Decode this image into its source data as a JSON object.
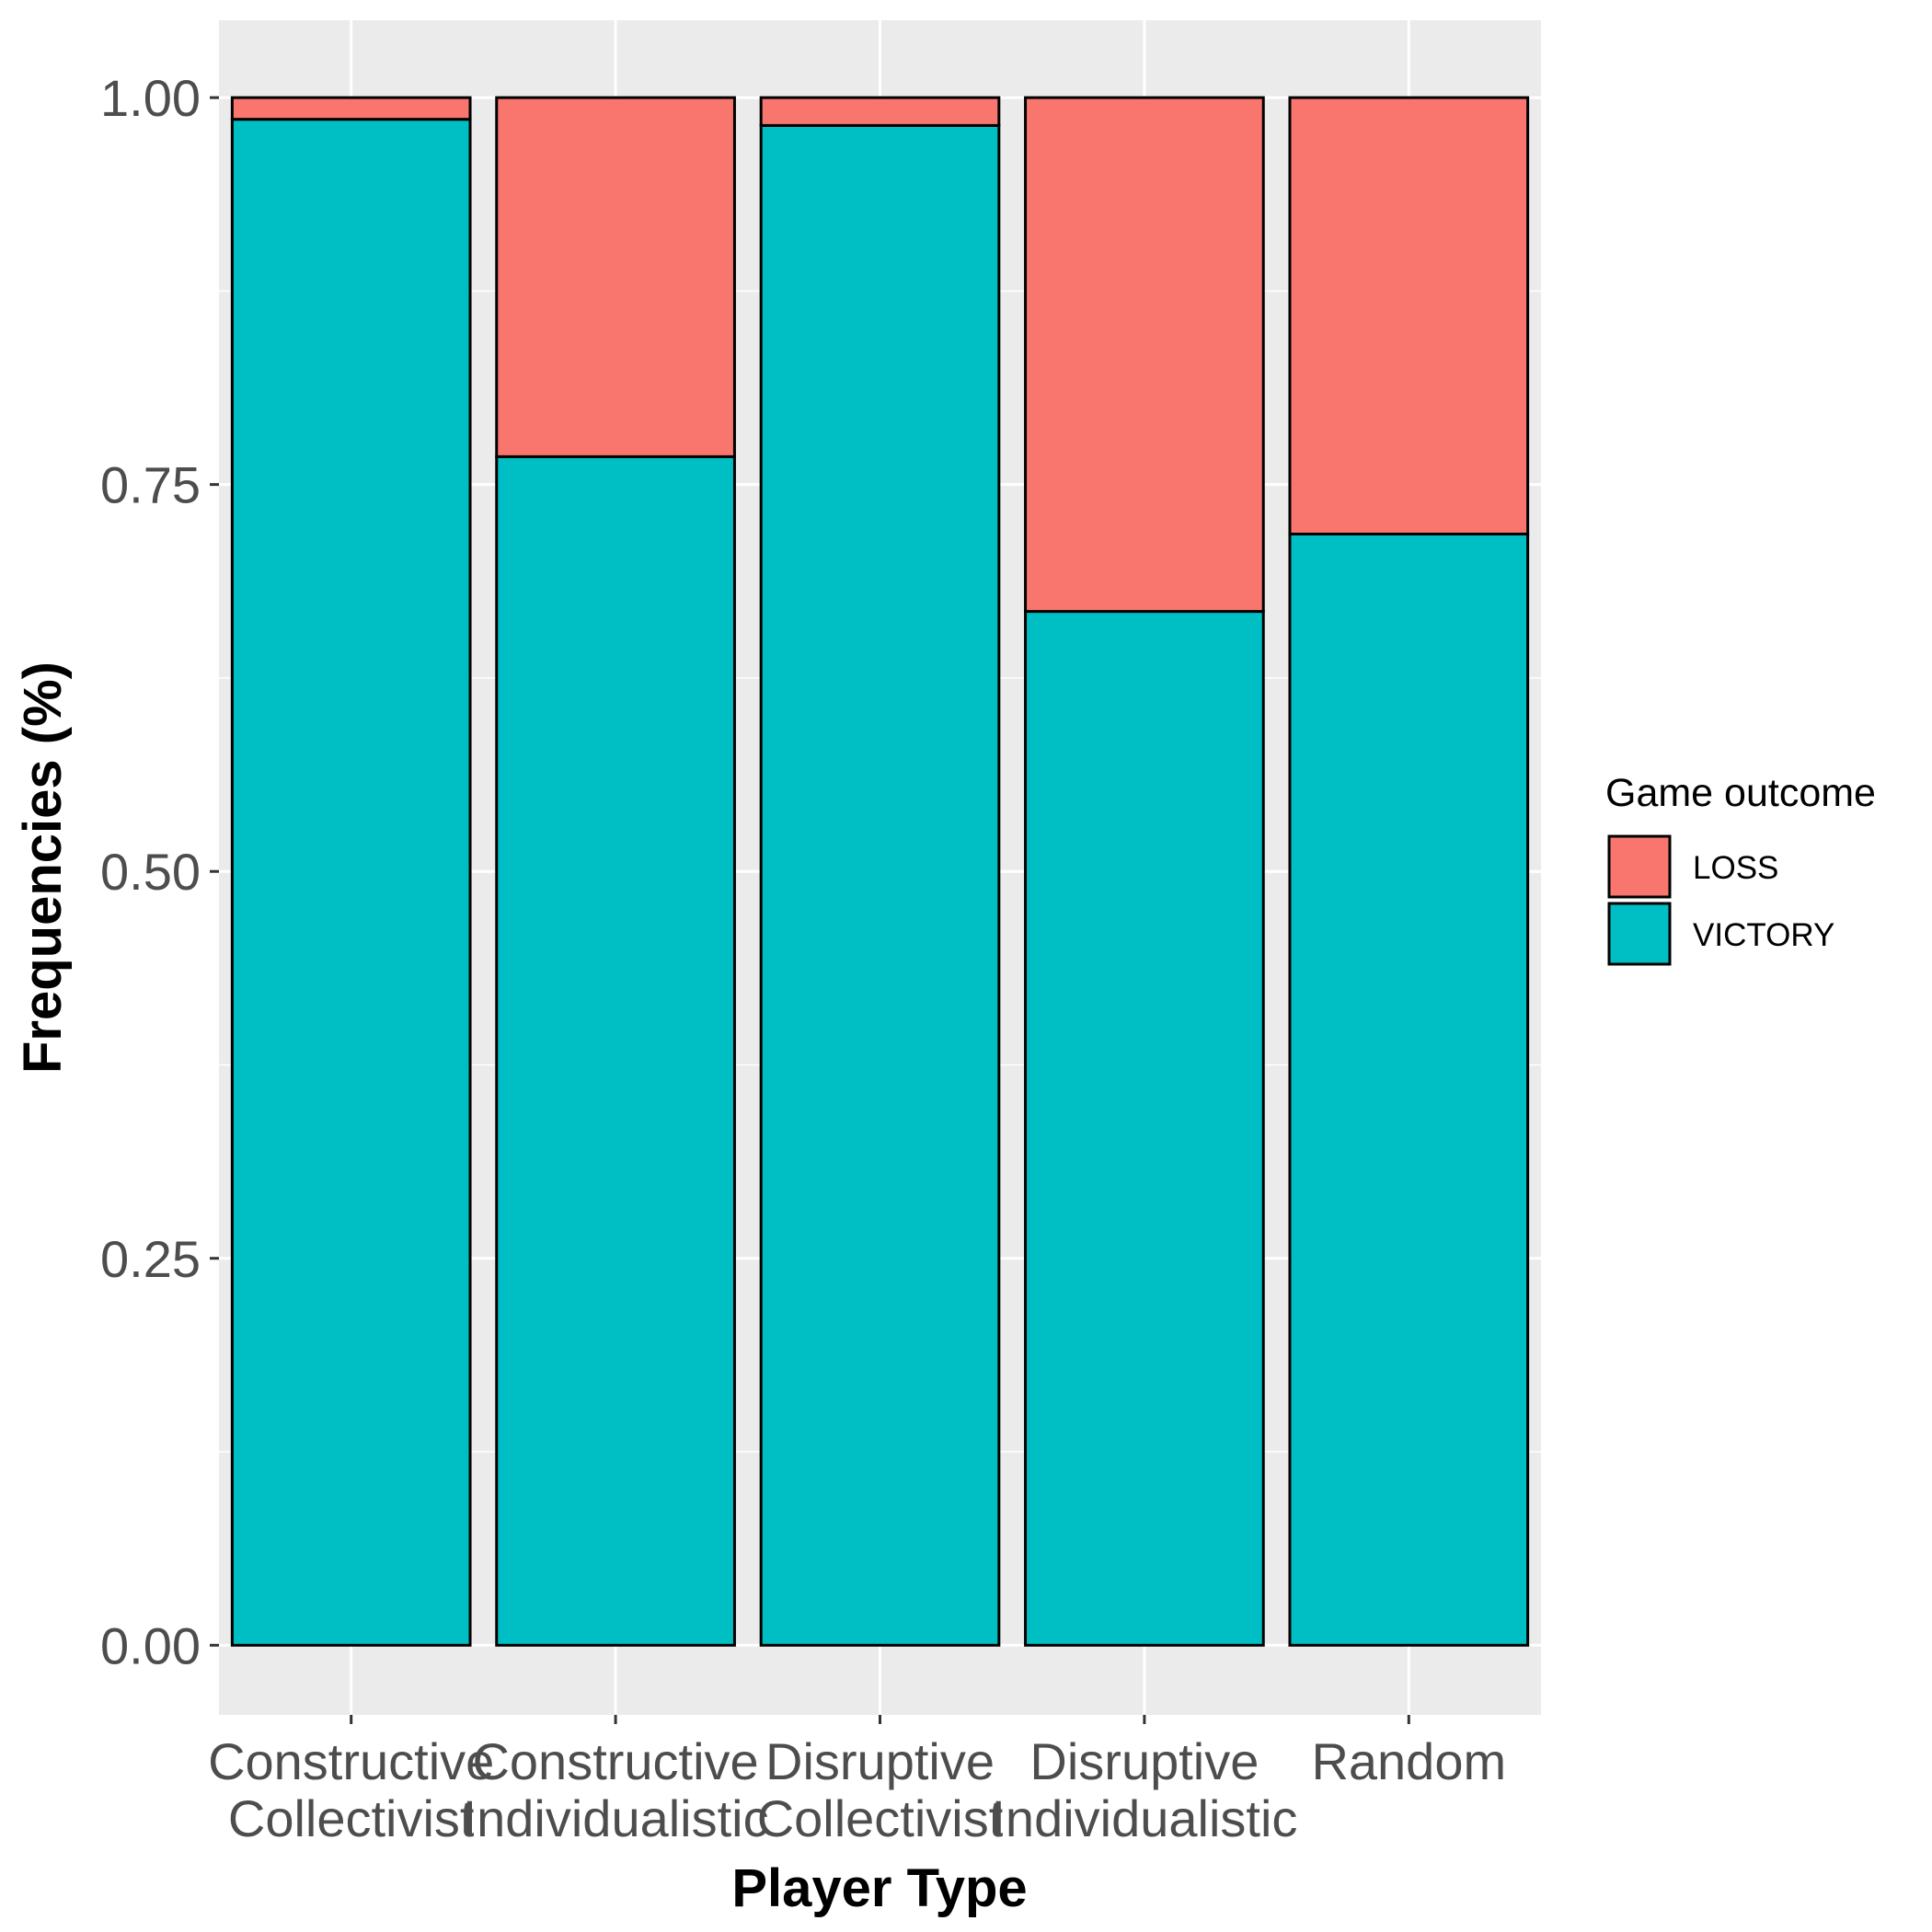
{
  "chart_data": {
    "type": "bar",
    "stacked": true,
    "categories": [
      [
        "Constructive",
        "Collectivist"
      ],
      [
        "Constructive",
        "Individualistic"
      ],
      [
        "Disruptive",
        "Collectivist"
      ],
      [
        "Disruptive",
        "Individualistic"
      ],
      [
        "Random"
      ]
    ],
    "series": [
      {
        "name": "VICTORY",
        "color": "#00BFC4",
        "values": [
          0.986,
          0.768,
          0.982,
          0.668,
          0.718
        ]
      },
      {
        "name": "LOSS",
        "color": "#F8766D",
        "values": [
          0.014,
          0.232,
          0.018,
          0.332,
          0.282
        ]
      }
    ],
    "xlabel": "Player Type",
    "ylabel": "Frequencies (%)",
    "ylim": [
      -0.045,
      1.05
    ],
    "yticks": [
      "0.00",
      "0.25",
      "0.50",
      "0.75",
      "1.00"
    ],
    "grid": true,
    "legend": {
      "title": "Game outcome",
      "position": "right",
      "items": [
        {
          "label": "LOSS",
          "color": "#F8766D"
        },
        {
          "label": "VICTORY",
          "color": "#00BFC4"
        }
      ]
    }
  }
}
